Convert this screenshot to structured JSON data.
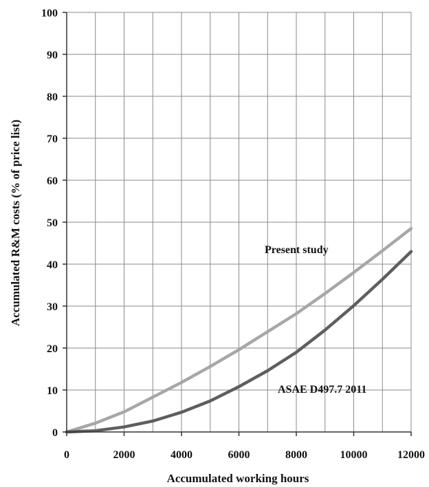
{
  "chart_data": {
    "type": "line",
    "title": "",
    "xlabel": "Accumulated working hours",
    "ylabel": "Accumulated R&M costs (% of price list)",
    "xlim": [
      0,
      12000
    ],
    "ylim": [
      0,
      100
    ],
    "xticks": [
      "0",
      "2000",
      "4000",
      "6000",
      "8000",
      "10000",
      "12000"
    ],
    "yticks": [
      "0",
      "10",
      "20",
      "30",
      "40",
      "50",
      "60",
      "70",
      "80",
      "90",
      "100"
    ],
    "x_minor_step": 1000,
    "grid": true,
    "series": [
      {
        "name": "Present study",
        "color": "#a7a7a7",
        "x": [
          0,
          1000,
          2000,
          3000,
          4000,
          5000,
          6000,
          7000,
          8000,
          9000,
          10000,
          11000,
          12000
        ],
        "y": [
          0,
          2.1,
          4.8,
          8.3,
          11.8,
          15.6,
          19.6,
          23.9,
          28.2,
          33.0,
          38.0,
          43.2,
          48.5
        ]
      },
      {
        "name": "ASAE D497.7 2011",
        "color": "#5e5e5e",
        "x": [
          0,
          1000,
          2000,
          3000,
          4000,
          5000,
          6000,
          7000,
          8000,
          9000,
          10000,
          11000,
          12000
        ],
        "y": [
          0,
          0.3,
          1.2,
          2.6,
          4.7,
          7.4,
          10.8,
          14.6,
          19.0,
          24.3,
          30.1,
          36.4,
          43.0
        ]
      }
    ]
  }
}
